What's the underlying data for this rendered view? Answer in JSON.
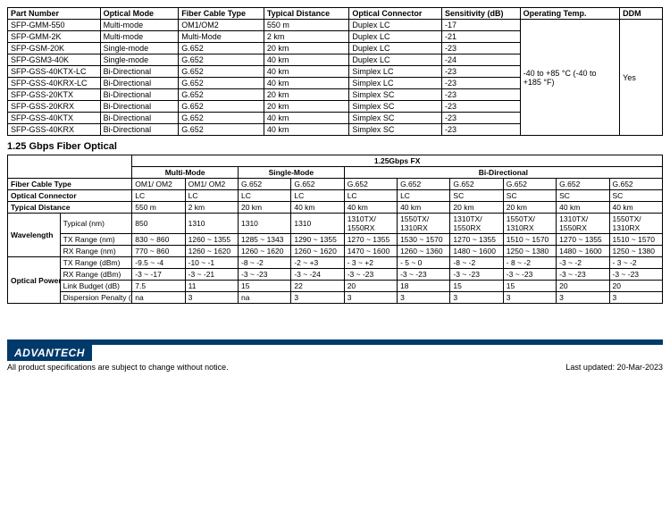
{
  "table1": {
    "headers": [
      "Part Number",
      "Optical Mode",
      "Fiber Cable Type",
      "Typical Distance",
      "Optical Connector",
      "Sensitivity (dB)",
      "Operating Temp.",
      "DDM"
    ],
    "rows": [
      [
        "SFP-GMM-550",
        "Multi-mode",
        "OM1/OM2",
        "550 m",
        "Duplex LC",
        "-17"
      ],
      [
        "SFP-GMM-2K",
        "Multi-mode",
        "Multi-Mode",
        "2 km",
        "Duplex LC",
        "-21"
      ],
      [
        "SFP-GSM-20K",
        "Single-mode",
        "G.652",
        "20 km",
        "Duplex LC",
        "-23"
      ],
      [
        "SFP-GSM3-40K",
        "Single-mode",
        "G.652",
        "40 km",
        "Duplex LC",
        "-24"
      ],
      [
        "SFP-GSS-40KTX-LC",
        "Bi-Directional",
        "G.652",
        "40 km",
        "Simplex LC",
        "-23"
      ],
      [
        "SFP-GSS-40KRX-LC",
        "Bi-Directional",
        "G.652",
        "40 km",
        "Simplex LC",
        "-23"
      ],
      [
        "SFP-GSS-20KTX",
        "Bi-Directional",
        "G.652",
        "20 km",
        "Simplex SC",
        "-23"
      ],
      [
        "SFP-GSS-20KRX",
        "Bi-Directional",
        "G.652",
        "20 km",
        "Simplex SC",
        "-23"
      ],
      [
        "SFP-GSS-40KTX",
        "Bi-Directional",
        "G.652",
        "40 km",
        "Simplex SC",
        "-23"
      ],
      [
        "SFP-GSS-40KRX",
        "Bi-Directional",
        "G.652",
        "40 km",
        "Simplex SC",
        "-23"
      ]
    ],
    "op_temp": "-40 to +85 °C\n(-40 to +185 °F)",
    "ddm": "Yes"
  },
  "section_title": "1.25 Gbps Fiber Optical",
  "table2": {
    "top_header": "1.25Gbps FX",
    "mode_headers": [
      "Multi-Mode",
      "Single-Mode",
      "Bi-Directional"
    ],
    "row_labels": {
      "fct": "Fiber Cable Type",
      "oc": "Optical Connector",
      "td": "Typical Distance",
      "wl": "Wavelength",
      "wl_typ": "Typical (nm)",
      "wl_tx": "TX Range (nm)",
      "wl_rx": "RX Range (nm)",
      "op": "Optical Power",
      "op_txr": "TX Range (dBm)",
      "op_rxr": "RX Range (dBm)",
      "op_lb": "Link Budget (dB)",
      "op_dp": "Dispersion Penalty (dB)"
    },
    "fct": [
      "OM1/ OM2",
      "OM1/ OM2",
      "G.652",
      "G.652",
      "G.652",
      "G.652",
      "G.652",
      "G.652",
      "G.652",
      "G.652"
    ],
    "oc": [
      "LC",
      "LC",
      "LC",
      "LC",
      "LC",
      "LC",
      "SC",
      "SC",
      "SC",
      "SC"
    ],
    "td": [
      "550 m",
      "2 km",
      "20 km",
      "40 km",
      "40 km",
      "40 km",
      "20 km",
      "20 km",
      "40 km",
      "40 km"
    ],
    "wl_typ": [
      "850",
      "1310",
      "1310",
      "1310",
      "1310TX/ 1550RX",
      "1550TX/ 1310RX",
      "1310TX/ 1550RX",
      "1550TX/ 1310RX",
      "1310TX/ 1550RX",
      "1550TX/ 1310RX"
    ],
    "wl_tx": [
      "830 ~ 860",
      "1260 ~ 1355",
      "1285 ~ 1343",
      "1290 ~ 1355",
      "1270 ~ 1355",
      "1530 ~ 1570",
      "1270 ~ 1355",
      "1510 ~ 1570",
      "1270 ~ 1355",
      "1510 ~ 1570"
    ],
    "wl_rx": [
      "770 ~ 860",
      "1260 ~ 1620",
      "1260 ~ 1620",
      "1260 ~ 1620",
      "1470 ~ 1600",
      "1260 ~ 1360",
      "1480 ~ 1600",
      "1250 ~ 1380",
      "1480 ~ 1600",
      "1250 ~ 1380"
    ],
    "op_txr": [
      "-9.5 ~ -4",
      "-10 ~ -1",
      "-8 ~ -2",
      "-2 ~ +3",
      "- 3 ~ +2",
      "- 5 ~ 0",
      "-8 ~ -2",
      "- 8 ~ -2",
      "-3 ~ -2",
      "- 3 ~ -2"
    ],
    "op_rxr": [
      "-3 ~ -17",
      "-3 ~ -21",
      "-3 ~ -23",
      "-3 ~ -24",
      "-3 ~ -23",
      "-3 ~ -23",
      "-3 ~ -23",
      "-3 ~ -23",
      "-3 ~ -23",
      "-3 ~ -23"
    ],
    "op_lb": [
      "7.5",
      "11",
      "15",
      "22",
      "20",
      "18",
      "15",
      "15",
      "20",
      "20"
    ],
    "op_dp": [
      "na",
      "3",
      "na",
      "3",
      "3",
      "3",
      "3",
      "3",
      "3",
      "3"
    ]
  },
  "footer": {
    "brand": "ADVANTECH",
    "note": "All product specifications are subject to change without notice.",
    "updated": "Last updated: 20-Mar-2023"
  },
  "colors": {
    "brand_bg": "#003a6a"
  }
}
